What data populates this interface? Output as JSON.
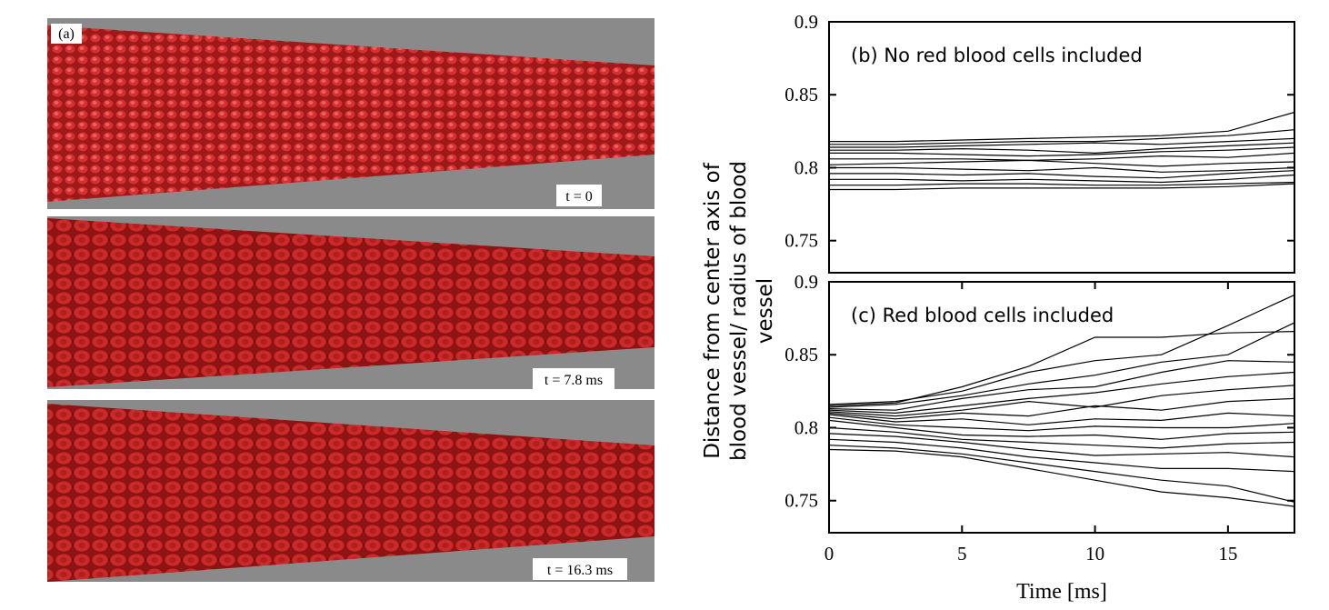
{
  "panel_a": {
    "label": "(a)",
    "time_labels": [
      "t = 0",
      "t = 7.8 ms",
      "t = 16.3 ms"
    ]
  },
  "ylabel": "Distance from center axis of blood vessel/ radius of blood vessel",
  "chart_data": [
    {
      "type": "line",
      "annotation": "(b) No red blood cells included",
      "color": "#000000",
      "x": [
        0,
        2.5,
        5,
        7.5,
        10,
        12.5,
        15,
        17.5
      ],
      "xlim": [
        0,
        17.5
      ],
      "ylim": [
        0.728,
        0.9
      ],
      "yticks": [
        0.75,
        0.8,
        0.85,
        0.9
      ],
      "series": [
        {
          "values": [
            0.818,
            0.818,
            0.819,
            0.82,
            0.821,
            0.822,
            0.825,
            0.838
          ]
        },
        {
          "values": [
            0.816,
            0.816,
            0.817,
            0.818,
            0.818,
            0.82,
            0.822,
            0.826
          ]
        },
        {
          "values": [
            0.814,
            0.814,
            0.815,
            0.816,
            0.817,
            0.816,
            0.818,
            0.82
          ]
        },
        {
          "values": [
            0.812,
            0.812,
            0.813,
            0.812,
            0.81,
            0.813,
            0.815,
            0.817
          ]
        },
        {
          "values": [
            0.81,
            0.81,
            0.809,
            0.808,
            0.809,
            0.811,
            0.812,
            0.814
          ]
        },
        {
          "values": [
            0.806,
            0.806,
            0.806,
            0.805,
            0.806,
            0.808,
            0.807,
            0.81
          ]
        },
        {
          "values": [
            0.802,
            0.803,
            0.804,
            0.805,
            0.803,
            0.801,
            0.803,
            0.804
          ]
        },
        {
          "values": [
            0.8,
            0.8,
            0.799,
            0.798,
            0.8,
            0.797,
            0.798,
            0.8
          ]
        },
        {
          "values": [
            0.796,
            0.796,
            0.795,
            0.796,
            0.794,
            0.793,
            0.796,
            0.798
          ]
        },
        {
          "values": [
            0.792,
            0.792,
            0.791,
            0.792,
            0.791,
            0.79,
            0.792,
            0.795
          ]
        },
        {
          "values": [
            0.788,
            0.788,
            0.789,
            0.789,
            0.788,
            0.788,
            0.789,
            0.79
          ]
        },
        {
          "values": [
            0.785,
            0.785,
            0.786,
            0.786,
            0.786,
            0.786,
            0.787,
            0.789
          ]
        }
      ]
    },
    {
      "type": "line",
      "annotation": "(c) Red blood cells included",
      "color": "#000000",
      "x": [
        0,
        2.5,
        5,
        7.5,
        10,
        12.5,
        15,
        17.5
      ],
      "xlim": [
        0,
        17.5
      ],
      "ylim": [
        0.728,
        0.9
      ],
      "yticks": [
        0.75,
        0.8,
        0.85,
        0.9
      ],
      "xticks": [
        0,
        5,
        10,
        15
      ],
      "xlabel": "Time [ms]",
      "series": [
        {
          "values": [
            0.816,
            0.818,
            0.825,
            0.838,
            0.846,
            0.85,
            0.87,
            0.891
          ]
        },
        {
          "values": [
            0.815,
            0.817,
            0.828,
            0.842,
            0.862,
            0.862,
            0.865,
            0.866
          ]
        },
        {
          "values": [
            0.814,
            0.816,
            0.822,
            0.83,
            0.836,
            0.845,
            0.85,
            0.872
          ]
        },
        {
          "values": [
            0.813,
            0.812,
            0.82,
            0.826,
            0.828,
            0.838,
            0.846,
            0.845
          ]
        },
        {
          "values": [
            0.812,
            0.81,
            0.815,
            0.82,
            0.824,
            0.83,
            0.835,
            0.838
          ]
        },
        {
          "values": [
            0.811,
            0.808,
            0.812,
            0.818,
            0.814,
            0.822,
            0.826,
            0.829
          ]
        },
        {
          "values": [
            0.81,
            0.806,
            0.81,
            0.808,
            0.815,
            0.812,
            0.818,
            0.82
          ]
        },
        {
          "values": [
            0.809,
            0.804,
            0.806,
            0.802,
            0.806,
            0.805,
            0.81,
            0.808
          ]
        },
        {
          "values": [
            0.807,
            0.802,
            0.8,
            0.798,
            0.801,
            0.8,
            0.8,
            0.803
          ]
        },
        {
          "values": [
            0.805,
            0.8,
            0.795,
            0.794,
            0.795,
            0.792,
            0.796,
            0.797
          ]
        },
        {
          "values": [
            0.8,
            0.797,
            0.792,
            0.79,
            0.788,
            0.786,
            0.789,
            0.79
          ]
        },
        {
          "values": [
            0.796,
            0.794,
            0.79,
            0.785,
            0.781,
            0.782,
            0.783,
            0.78
          ]
        },
        {
          "values": [
            0.792,
            0.79,
            0.786,
            0.78,
            0.776,
            0.772,
            0.772,
            0.77
          ]
        },
        {
          "values": [
            0.788,
            0.786,
            0.782,
            0.776,
            0.77,
            0.764,
            0.76,
            0.749
          ]
        },
        {
          "values": [
            0.785,
            0.784,
            0.78,
            0.772,
            0.764,
            0.756,
            0.752,
            0.746
          ]
        }
      ]
    }
  ]
}
